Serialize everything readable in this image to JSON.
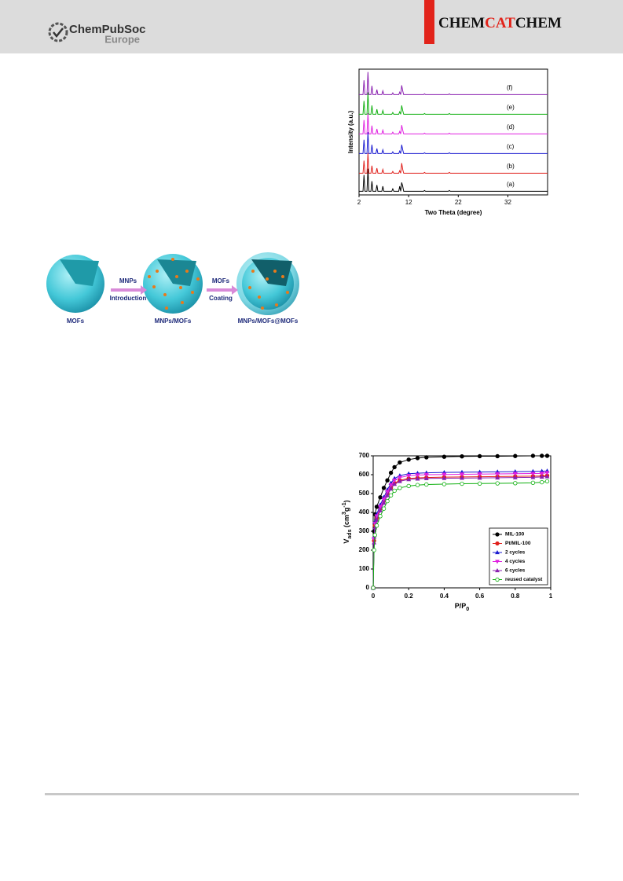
{
  "header": {
    "logo_main": "ChemPubSoc",
    "logo_sub": "Europe",
    "journal": [
      "CHEM",
      "CAT",
      "CHEM"
    ]
  },
  "scheme": {
    "arrows": [
      [
        "MNPs",
        "Introduction"
      ],
      [
        "MOFs",
        "Coating"
      ]
    ],
    "labels": [
      "MOFs",
      "MNPs/MOFs",
      "MNPs/MOFs@MOFs"
    ]
  },
  "chart_data": [
    {
      "type": "line",
      "xlabel": "Two Theta (degree)",
      "ylabel": "Intensity (a.u.)",
      "xlim": [
        2,
        40
      ],
      "xticks": [
        2,
        12,
        22,
        32
      ],
      "ylim": [
        0,
        100
      ],
      "x": [
        2,
        2.8,
        3,
        3.2,
        3.6,
        3.8,
        4,
        4.4,
        4.6,
        4.8,
        5.4,
        5.6,
        5.8,
        6.6,
        6.8,
        7,
        8.6,
        8.8,
        9,
        10,
        10.2,
        10.4,
        10.6,
        10.8,
        11,
        11.4,
        15,
        15.2,
        15.4,
        20,
        20.2,
        20.4,
        25,
        40
      ],
      "series": [
        {
          "name": "(a)",
          "color": "#000000",
          "values": [
            5,
            5,
            70,
            5,
            5,
            95,
            5,
            5,
            45,
            5,
            5,
            30,
            5,
            5,
            25,
            5,
            5,
            15,
            5,
            5,
            25,
            5,
            40,
            25,
            5,
            5,
            5,
            8,
            5,
            5,
            8,
            5,
            5,
            5
          ]
        },
        {
          "name": "(b)",
          "color": "#e0201c",
          "values": [
            5,
            5,
            55,
            5,
            5,
            85,
            5,
            5,
            35,
            5,
            5,
            25,
            5,
            5,
            20,
            5,
            5,
            12,
            5,
            5,
            15,
            5,
            45,
            20,
            5,
            5,
            5,
            8,
            5,
            5,
            8,
            5,
            5,
            5
          ]
        },
        {
          "name": "(c)",
          "color": "#1a1ad0",
          "values": [
            5,
            5,
            60,
            5,
            5,
            90,
            5,
            5,
            40,
            5,
            5,
            25,
            5,
            5,
            20,
            5,
            5,
            12,
            5,
            5,
            15,
            5,
            40,
            20,
            5,
            5,
            5,
            8,
            5,
            5,
            8,
            5,
            5,
            5
          ]
        },
        {
          "name": "(d)",
          "color": "#e020e0",
          "values": [
            5,
            5,
            60,
            5,
            5,
            88,
            5,
            5,
            38,
            5,
            5,
            25,
            5,
            5,
            20,
            5,
            5,
            12,
            5,
            5,
            15,
            5,
            40,
            20,
            5,
            5,
            5,
            8,
            5,
            5,
            8,
            5,
            5,
            5
          ]
        },
        {
          "name": "(e)",
          "color": "#10b010",
          "values": [
            5,
            5,
            58,
            5,
            5,
            92,
            5,
            5,
            40,
            5,
            5,
            25,
            5,
            5,
            20,
            5,
            5,
            12,
            5,
            5,
            15,
            5,
            40,
            20,
            5,
            5,
            5,
            8,
            5,
            5,
            8,
            5,
            5,
            5
          ]
        },
        {
          "name": "(f)",
          "color": "#8a20b0",
          "values": [
            5,
            5,
            62,
            5,
            5,
            95,
            5,
            5,
            40,
            5,
            5,
            25,
            5,
            5,
            20,
            5,
            5,
            12,
            5,
            5,
            15,
            5,
            42,
            20,
            5,
            5,
            5,
            8,
            5,
            5,
            8,
            5,
            5,
            5
          ]
        }
      ]
    },
    {
      "type": "line",
      "xlabel_parts": [
        {
          "text": "P/P"
        },
        {
          "text": "0",
          "sub": true
        }
      ],
      "ylabel_parts": [
        {
          "text": "V"
        },
        {
          "text": "ads",
          "sub": true
        },
        {
          "text": " (cm"
        },
        {
          "text": "3",
          "sup": true
        },
        {
          "text": "g"
        },
        {
          "text": "-1",
          "sup": true
        },
        {
          "text": ")"
        }
      ],
      "xlim": [
        0,
        1
      ],
      "xticks": [
        0,
        0.2,
        0.4,
        0.6,
        0.8,
        1
      ],
      "ylim": [
        0,
        700
      ],
      "yticks": [
        0,
        100,
        200,
        300,
        400,
        500,
        600,
        700
      ],
      "legend": "lower right",
      "x": [
        0,
        0.005,
        0.01,
        0.02,
        0.04,
        0.06,
        0.08,
        0.1,
        0.12,
        0.15,
        0.2,
        0.25,
        0.3,
        0.4,
        0.5,
        0.6,
        0.7,
        0.8,
        0.9,
        0.95,
        0.98
      ],
      "series": [
        {
          "name": "MIL-100",
          "color": "#000000",
          "marker": "circle",
          "values": [
            0,
            300,
            390,
            430,
            480,
            530,
            570,
            610,
            640,
            665,
            680,
            688,
            692,
            695,
            697,
            698,
            698,
            699,
            700,
            700,
            700
          ]
        },
        {
          "name": "Pt/MIL-100",
          "color": "#e0201c",
          "marker": "circle",
          "values": [
            0,
            250,
            330,
            370,
            420,
            460,
            500,
            530,
            555,
            570,
            580,
            583,
            585,
            587,
            588,
            589,
            590,
            591,
            592,
            593,
            595
          ]
        },
        {
          "name": "2 cycles",
          "color": "#1a1ad0",
          "marker": "triangle",
          "values": [
            0,
            270,
            350,
            390,
            440,
            480,
            520,
            555,
            580,
            595,
            605,
            608,
            610,
            612,
            613,
            614,
            615,
            616,
            617,
            618,
            620
          ]
        },
        {
          "name": "4 cycles",
          "color": "#e020e0",
          "marker": "triangle-down",
          "values": [
            0,
            260,
            340,
            380,
            430,
            470,
            510,
            545,
            570,
            585,
            595,
            598,
            600,
            601,
            602,
            603,
            604,
            605,
            606,
            607,
            610
          ]
        },
        {
          "name": "6 cycles",
          "color": "#8a20b0",
          "marker": "triangle",
          "values": [
            0,
            240,
            320,
            360,
            410,
            450,
            490,
            525,
            550,
            565,
            575,
            578,
            580,
            581,
            582,
            583,
            584,
            585,
            586,
            588,
            590
          ]
        },
        {
          "name": "reused catalyst",
          "color": "#10b010",
          "marker": "circle-open",
          "values": [
            0,
            200,
            280,
            330,
            380,
            420,
            460,
            490,
            515,
            530,
            540,
            545,
            548,
            550,
            552,
            553,
            554,
            555,
            557,
            560,
            565
          ]
        }
      ]
    }
  ]
}
